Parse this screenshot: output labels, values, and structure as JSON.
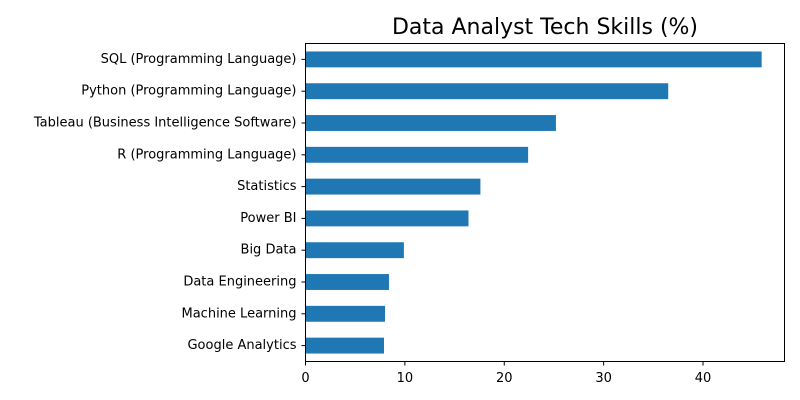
{
  "chart_data": {
    "type": "bar",
    "orientation": "horizontal",
    "title": "Data Analyst Tech Skills (%)",
    "xlabel": "",
    "ylabel": "",
    "categories": [
      "SQL (Programming Language)",
      "Python (Programming Language)",
      "Tableau (Business Intelligence Software)",
      "R (Programming Language)",
      "Statistics",
      "Power BI",
      "Big Data",
      "Data Engineering",
      "Machine Learning",
      "Google Analytics"
    ],
    "values": [
      45.9,
      36.5,
      25.2,
      22.4,
      17.6,
      16.4,
      9.9,
      8.4,
      8.0,
      7.9
    ],
    "xlim": [
      0,
      48.2
    ],
    "xticks": [
      0,
      10,
      20,
      30,
      40
    ],
    "bar_color": "#1f77b4",
    "grid": false,
    "legend": "none"
  }
}
